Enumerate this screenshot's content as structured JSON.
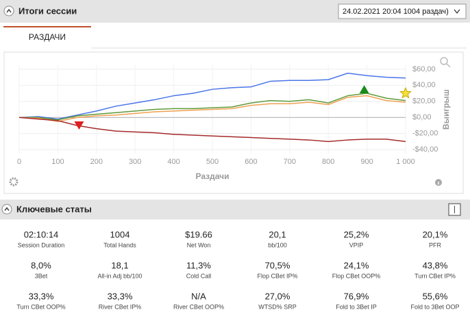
{
  "header": {
    "title": "Итоги сессии",
    "session_select": "24.02.2021 20:04 1004 раздач)"
  },
  "tab": "РАЗДАЧИ",
  "chart_data": {
    "type": "line",
    "xlabel": "Раздачи",
    "ylabel": "Выигрыш",
    "x": [
      0,
      50,
      100,
      150,
      200,
      250,
      300,
      350,
      400,
      450,
      500,
      550,
      600,
      650,
      700,
      750,
      800,
      850,
      900,
      950,
      1000
    ],
    "series": [
      {
        "color": "#4a74e8",
        "values": [
          0,
          1,
          -2,
          3,
          8,
          14,
          18,
          22,
          27,
          30,
          35,
          37,
          38,
          45,
          46,
          46,
          47,
          55,
          52,
          50,
          49
        ]
      },
      {
        "color": "#5f9a3a",
        "values": [
          0,
          0,
          -3,
          2,
          4,
          6,
          8,
          10,
          11,
          11,
          12,
          13,
          18,
          21,
          20,
          22,
          18,
          27,
          30,
          24,
          21
        ]
      },
      {
        "color": "#f0a050",
        "values": [
          0,
          -1,
          -5,
          0,
          2,
          3,
          5,
          7,
          8,
          9,
          10,
          11,
          15,
          17,
          17,
          19,
          16,
          25,
          27,
          21,
          19
        ]
      },
      {
        "color": "#a52a2a",
        "values": [
          0,
          -2,
          -4,
          -10,
          -14,
          -17,
          -18,
          -19,
          -21,
          -22,
          -23,
          -24,
          -25,
          -26,
          -27,
          -28,
          -30,
          -28,
          -27,
          -27,
          -30
        ]
      }
    ],
    "markers": [
      {
        "x": 155,
        "y": -10,
        "shape": "triangle-down",
        "color": "#e02020"
      },
      {
        "x": 893,
        "y": 35,
        "shape": "triangle-up",
        "color": "#1a8a1a"
      },
      {
        "x": 1000,
        "y": 30,
        "shape": "star",
        "color": "#f5e03a"
      }
    ],
    "xlim": [
      0,
      1000
    ],
    "ylim": [
      -45,
      65
    ],
    "xticks": [
      0,
      100,
      200,
      300,
      400,
      500,
      600,
      700,
      800,
      900,
      {
        "value": 1000,
        "label": "1 000"
      }
    ],
    "yticks": [
      {
        "value": 60,
        "label": "$60,00"
      },
      {
        "value": 40,
        "label": "$40,00"
      },
      {
        "value": 20,
        "label": "$20,00"
      },
      {
        "value": 0,
        "label": "$0,00"
      },
      {
        "value": -20,
        "label": "-$20,00"
      },
      {
        "value": -40,
        "label": "-$40,00"
      }
    ],
    "grid": true
  },
  "stats_title": "Ключевые статы",
  "stats": [
    {
      "value": "02:10:14",
      "label": "Session Duration"
    },
    {
      "value": "1004",
      "label": "Total Hands"
    },
    {
      "value": "$19.66",
      "label": "Net Won"
    },
    {
      "value": "20,1",
      "label": "bb/100"
    },
    {
      "value": "25,2%",
      "label": "VPIP"
    },
    {
      "value": "20,1%",
      "label": "PFR"
    },
    {
      "value": "8,0%",
      "label": "3Bet"
    },
    {
      "value": "18,1",
      "label": "All-in Adj bb/100"
    },
    {
      "value": "11,3%",
      "label": "Cold Call"
    },
    {
      "value": "70,5%",
      "label": "Flop CBet IP%"
    },
    {
      "value": "24,1%",
      "label": "Flop CBet OOP%"
    },
    {
      "value": "43,8%",
      "label": "Turn CBet IP%"
    },
    {
      "value": "33,3%",
      "label": "Turn CBet OOP%"
    },
    {
      "value": "33,3%",
      "label": "River CBet IP%"
    },
    {
      "value": "N/A",
      "label": "River CBet OOP%"
    },
    {
      "value": "27,0%",
      "label": "WTSD% SRP"
    },
    {
      "value": "76,9%",
      "label": "Fold to 3Bet IP"
    },
    {
      "value": "55,6%",
      "label": "Fold to 3Bet OOP"
    }
  ]
}
